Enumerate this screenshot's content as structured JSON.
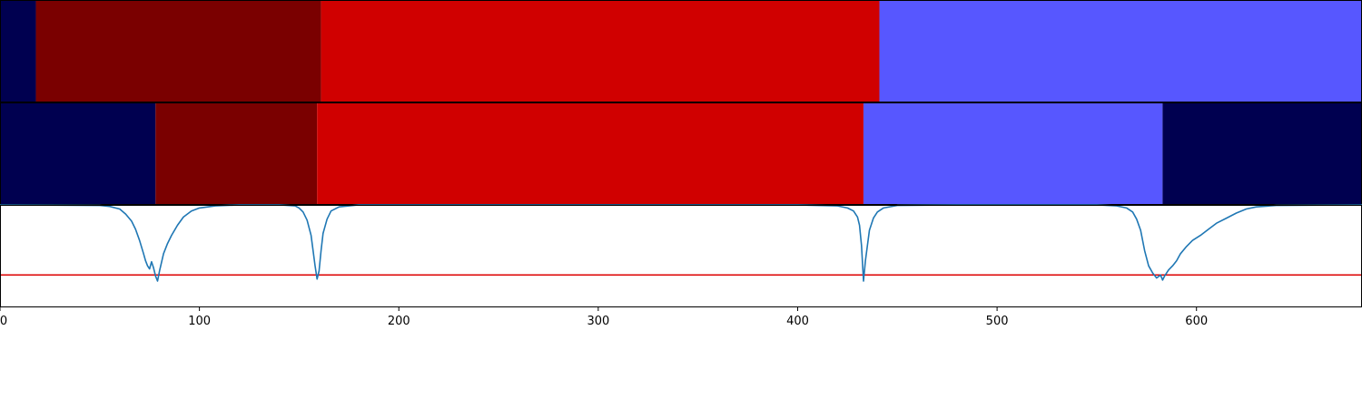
{
  "chart_data": [
    {
      "type": "segment-bar",
      "panel": "row-1",
      "segments": [
        {
          "start": 0,
          "end": 18,
          "color": "#000050"
        },
        {
          "start": 18,
          "end": 161,
          "color": "#7a0000"
        },
        {
          "start": 161,
          "end": 441,
          "color": "#d00000"
        },
        {
          "start": 441,
          "end": 683,
          "color": "#5757ff"
        }
      ]
    },
    {
      "type": "segment-bar",
      "panel": "row-2",
      "segments": [
        {
          "start": 0,
          "end": 78,
          "color": "#000050"
        },
        {
          "start": 78,
          "end": 159,
          "color": "#7a0000"
        },
        {
          "start": 159,
          "end": 433,
          "color": "#d00000"
        },
        {
          "start": 433,
          "end": 583,
          "color": "#5757ff"
        },
        {
          "start": 583,
          "end": 683,
          "color": "#000050"
        }
      ]
    },
    {
      "type": "line",
      "panel": "row-3",
      "ylim": [
        0,
        1
      ],
      "threshold": {
        "y": 0.31,
        "color": "#dd0000"
      },
      "series": [
        {
          "color": "#1f77b4",
          "x": [
            0,
            50,
            55,
            60,
            63,
            66,
            68,
            70,
            72,
            73,
            74,
            75,
            76,
            77,
            78,
            79,
            80,
            82,
            84,
            86,
            89,
            92,
            96,
            100,
            108,
            120,
            140,
            148,
            150,
            152,
            154,
            156,
            157,
            158,
            159,
            160,
            161,
            162,
            164,
            166,
            170,
            180,
            200,
            400,
            420,
            425,
            428,
            430,
            431,
            432,
            433,
            434,
            435,
            436,
            438,
            440,
            443,
            450,
            480,
            550,
            560,
            565,
            568,
            570,
            572,
            574,
            576,
            578,
            580,
            582,
            583,
            584,
            586,
            588,
            590,
            592,
            595,
            598,
            602,
            606,
            610,
            615,
            620,
            625,
            630,
            640,
            683
          ],
          "y": [
            1.0,
            0.995,
            0.985,
            0.96,
            0.91,
            0.84,
            0.76,
            0.65,
            0.52,
            0.45,
            0.4,
            0.37,
            0.44,
            0.38,
            0.3,
            0.25,
            0.35,
            0.52,
            0.62,
            0.7,
            0.8,
            0.88,
            0.94,
            0.97,
            0.99,
            1.0,
            1.0,
            0.99,
            0.97,
            0.93,
            0.85,
            0.7,
            0.55,
            0.4,
            0.27,
            0.35,
            0.55,
            0.72,
            0.86,
            0.94,
            0.98,
            1.0,
            1.0,
            1.0,
            0.99,
            0.97,
            0.94,
            0.88,
            0.8,
            0.6,
            0.25,
            0.45,
            0.6,
            0.75,
            0.87,
            0.93,
            0.97,
            0.995,
            1.0,
            1.0,
            0.99,
            0.97,
            0.93,
            0.86,
            0.75,
            0.55,
            0.4,
            0.33,
            0.28,
            0.31,
            0.26,
            0.3,
            0.36,
            0.4,
            0.45,
            0.52,
            0.59,
            0.65,
            0.7,
            0.76,
            0.82,
            0.87,
            0.92,
            0.96,
            0.98,
            0.995,
            1.0
          ]
        }
      ]
    }
  ],
  "x_axis": {
    "xlim": [
      0,
      683
    ],
    "ticks": [
      0,
      100,
      200,
      300,
      400,
      500,
      600
    ],
    "tick_labels": [
      "0",
      "100",
      "200",
      "300",
      "400",
      "500",
      "600"
    ]
  }
}
